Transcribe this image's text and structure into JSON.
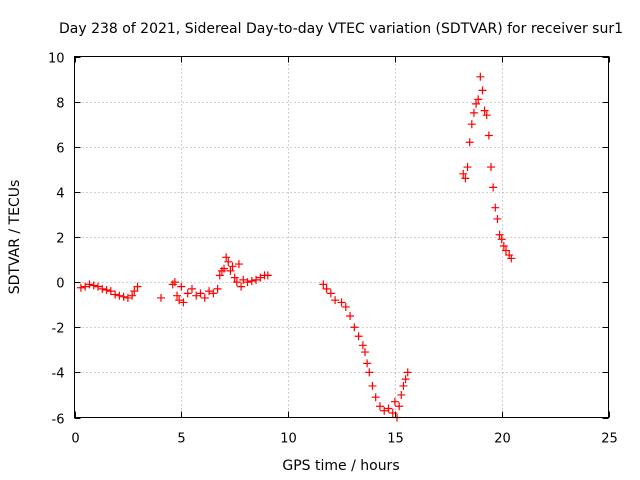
{
  "chart_data": {
    "type": "scatter",
    "title": "Day 238 of 2021, Sidereal Day-to-day VTEC variation (SDTVAR) for receiver sur1",
    "xlabel": "GPS time / hours",
    "ylabel": "SDTVAR / TECUs",
    "xlim": [
      0,
      25
    ],
    "ylim": [
      -6,
      10
    ],
    "x_ticks": [
      0,
      5,
      10,
      15,
      20,
      25
    ],
    "y_ticks": [
      -6,
      -4,
      -2,
      0,
      2,
      4,
      6,
      8,
      10
    ],
    "x_tick_labels": [
      "0",
      "5",
      "10",
      "15",
      "20",
      "25"
    ],
    "y_tick_labels": [
      "-6",
      "-4",
      "-2",
      "0",
      "2",
      "4",
      "6",
      "8",
      "10"
    ],
    "grid": true,
    "legend": "none",
    "marker": "+",
    "color": "#ff0000",
    "series": [
      {
        "name": "SDTVAR",
        "points": [
          [
            0.3,
            -0.25
          ],
          [
            0.5,
            -0.2
          ],
          [
            0.7,
            -0.1
          ],
          [
            0.9,
            -0.15
          ],
          [
            1.1,
            -0.2
          ],
          [
            1.3,
            -0.3
          ],
          [
            1.5,
            -0.35
          ],
          [
            1.7,
            -0.4
          ],
          [
            1.9,
            -0.55
          ],
          [
            2.1,
            -0.6
          ],
          [
            2.3,
            -0.65
          ],
          [
            2.5,
            -0.7
          ],
          [
            2.7,
            -0.6
          ],
          [
            2.8,
            -0.4
          ],
          [
            2.95,
            -0.2
          ],
          [
            4.05,
            -0.7
          ],
          [
            4.6,
            -0.1
          ],
          [
            4.7,
            0.0
          ],
          [
            4.8,
            -0.6
          ],
          [
            4.9,
            -0.8
          ],
          [
            5.0,
            -0.2
          ],
          [
            5.1,
            -0.9
          ],
          [
            5.3,
            -0.5
          ],
          [
            5.5,
            -0.3
          ],
          [
            5.7,
            -0.6
          ],
          [
            5.9,
            -0.5
          ],
          [
            6.1,
            -0.7
          ],
          [
            6.3,
            -0.4
          ],
          [
            6.5,
            -0.5
          ],
          [
            6.7,
            -0.3
          ],
          [
            6.8,
            0.3
          ],
          [
            6.9,
            0.5
          ],
          [
            7.0,
            0.6
          ],
          [
            7.1,
            1.1
          ],
          [
            7.2,
            0.9
          ],
          [
            7.3,
            0.5
          ],
          [
            7.4,
            0.7
          ],
          [
            7.5,
            0.2
          ],
          [
            7.6,
            0.0
          ],
          [
            7.7,
            0.8
          ],
          [
            7.8,
            -0.2
          ],
          [
            7.9,
            0.1
          ],
          [
            8.1,
            0.0
          ],
          [
            8.3,
            0.05
          ],
          [
            8.5,
            0.1
          ],
          [
            8.7,
            0.2
          ],
          [
            8.9,
            0.3
          ],
          [
            9.05,
            0.3
          ],
          [
            11.65,
            -0.1
          ],
          [
            11.8,
            -0.3
          ],
          [
            12.0,
            -0.5
          ],
          [
            12.2,
            -0.8
          ],
          [
            12.5,
            -0.9
          ],
          [
            12.7,
            -1.1
          ],
          [
            12.9,
            -1.5
          ],
          [
            13.1,
            -2.0
          ],
          [
            13.3,
            -2.4
          ],
          [
            13.5,
            -2.8
          ],
          [
            13.6,
            -3.1
          ],
          [
            13.7,
            -3.6
          ],
          [
            13.8,
            -4.0
          ],
          [
            13.95,
            -4.6
          ],
          [
            14.1,
            -5.1
          ],
          [
            14.3,
            -5.5
          ],
          [
            14.5,
            -5.7
          ],
          [
            14.7,
            -5.6
          ],
          [
            14.9,
            -5.8
          ],
          [
            15.0,
            -5.3
          ],
          [
            15.1,
            -6.0
          ],
          [
            15.2,
            -5.5
          ],
          [
            15.3,
            -5.0
          ],
          [
            15.4,
            -4.6
          ],
          [
            15.5,
            -4.3
          ],
          [
            15.6,
            -4.0
          ],
          [
            18.2,
            4.8
          ],
          [
            18.3,
            4.6
          ],
          [
            18.4,
            5.1
          ],
          [
            18.5,
            6.2
          ],
          [
            18.6,
            7.0
          ],
          [
            18.7,
            7.5
          ],
          [
            18.8,
            7.9
          ],
          [
            18.9,
            8.1
          ],
          [
            19.0,
            9.1
          ],
          [
            19.1,
            8.5
          ],
          [
            19.2,
            7.6
          ],
          [
            19.3,
            7.4
          ],
          [
            19.4,
            6.5
          ],
          [
            19.5,
            5.1
          ],
          [
            19.6,
            4.2
          ],
          [
            19.7,
            3.3
          ],
          [
            19.8,
            2.8
          ],
          [
            19.9,
            2.1
          ],
          [
            20.0,
            1.9
          ],
          [
            20.1,
            1.6
          ],
          [
            20.2,
            1.4
          ],
          [
            20.35,
            1.2
          ],
          [
            20.45,
            1.05
          ]
        ]
      }
    ]
  }
}
